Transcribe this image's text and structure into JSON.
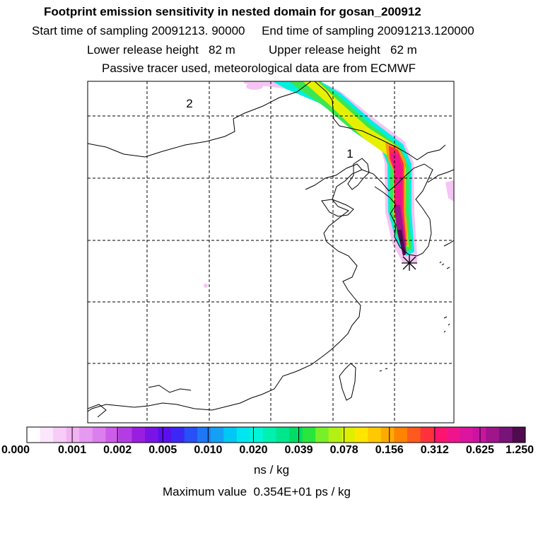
{
  "header": {
    "title": "Footprint emission sensitivity in nested domain for gosan_200912",
    "sampling_line": "Start time of sampling 20091213. 90000     End time of sampling 20091213.120000",
    "height_line": "Lower release height   82 m          Upper release height   62 m",
    "tracer_line": "Passive tracer used, meteorological data are from ECMWF"
  },
  "map": {
    "region_labels": [
      {
        "id": "region-label-1",
        "text": "1"
      },
      {
        "id": "region-label-2",
        "text": "2"
      }
    ],
    "release_site_marker": "star-marker"
  },
  "colorbar": {
    "tick_labels": [
      "0.000",
      "0.001",
      "0.002",
      "0.005",
      "0.010",
      "0.020",
      "0.039",
      "0.078",
      "0.156",
      "0.312",
      "0.625",
      "1.250"
    ],
    "colors": [
      "#ffffff",
      "#fbe6fb",
      "#f7ccf7",
      "#f2b3f2",
      "#e699f0",
      "#dc7fee",
      "#cc5cea",
      "#b43ce6",
      "#9b1ee0",
      "#7a14e6",
      "#5a10ee",
      "#3c28f5",
      "#2850f7",
      "#1e78f5",
      "#14a0f5",
      "#00c8f5",
      "#00e6f0",
      "#00f5d8",
      "#00f0b0",
      "#00e68c",
      "#00dc64",
      "#28e63c",
      "#78f028",
      "#b4f014",
      "#dcf000",
      "#ffe600",
      "#ffc800",
      "#ffaa00",
      "#ff8200",
      "#ff5a1e",
      "#ff323c",
      "#ff146e",
      "#f0148c",
      "#dc14a0",
      "#c814a0",
      "#a0148c",
      "#781478",
      "#500a50"
    ],
    "units": "ns / kg"
  },
  "footer": {
    "max_value": "Maximum value  0.354E+01 ps / kg"
  }
}
